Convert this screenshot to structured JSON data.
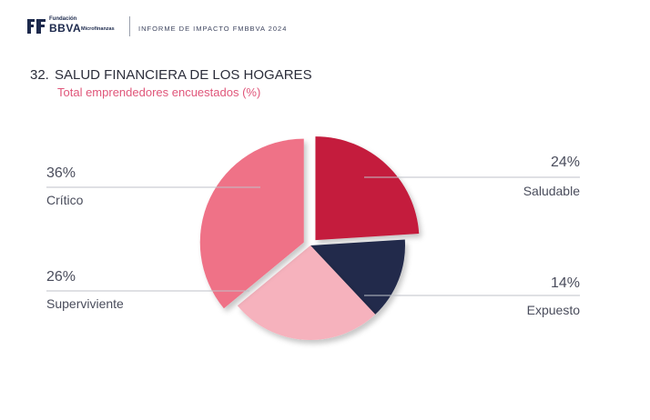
{
  "header": {
    "logo_top": "Fundación",
    "logo_brand": "BBVA",
    "logo_sub": "Microfinanzas",
    "report_title": "INFORME DE IMPACTO FMBBVA 2024"
  },
  "chart_number": "32.",
  "chart_data": {
    "type": "pie",
    "title": "SALUD FINANCIERA DE LOS HOGARES",
    "subtitle": "Total emprendedores encuestados (%)",
    "slices": [
      {
        "name": "Saludable",
        "value": 24,
        "label": "24%",
        "color": "#c41b3c",
        "exploded": true
      },
      {
        "name": "Expuesto",
        "value": 14,
        "label": "14%",
        "color": "#232b4b",
        "exploded": false
      },
      {
        "name": "Superviviente",
        "value": 26,
        "label": "26%",
        "color": "#f6b2bd",
        "exploded": false
      },
      {
        "name": "Crítico",
        "value": 36,
        "label": "36%",
        "color": "#ef7287",
        "exploded": true
      }
    ]
  }
}
